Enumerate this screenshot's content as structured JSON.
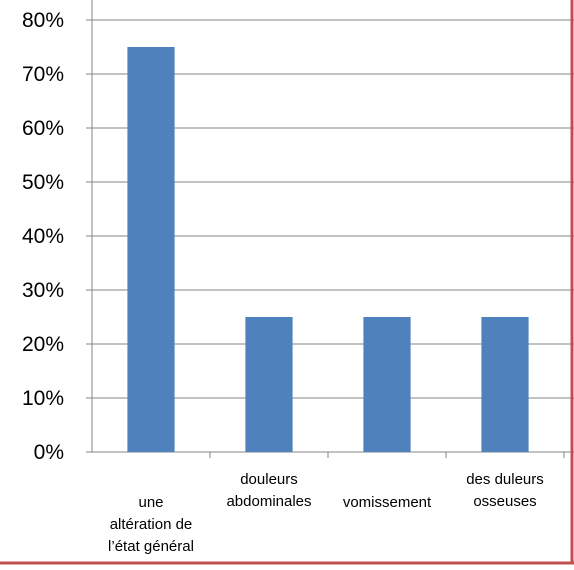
{
  "chart_data": {
    "type": "bar",
    "categories": [
      [
        "une",
        "altération de",
        "l’état général"
      ],
      [
        "douleurs",
        "abdominales"
      ],
      [
        "vomissement"
      ],
      [
        "des duleurs",
        "osseuses"
      ]
    ],
    "values": [
      75,
      25,
      25,
      25
    ],
    "value_unit": "percent",
    "title": "",
    "xlabel": "",
    "ylabel": "",
    "ylim": [
      0,
      80
    ],
    "yticks": [
      "0%",
      "10%",
      "20%",
      "30%",
      "40%",
      "50%",
      "60%",
      "70%",
      "80%"
    ],
    "grid": "horizontal",
    "legend": "none",
    "colors": {
      "bar": "#4F81BD",
      "grid": "#868686",
      "axis": "#868686",
      "border": "#C0504D"
    }
  }
}
